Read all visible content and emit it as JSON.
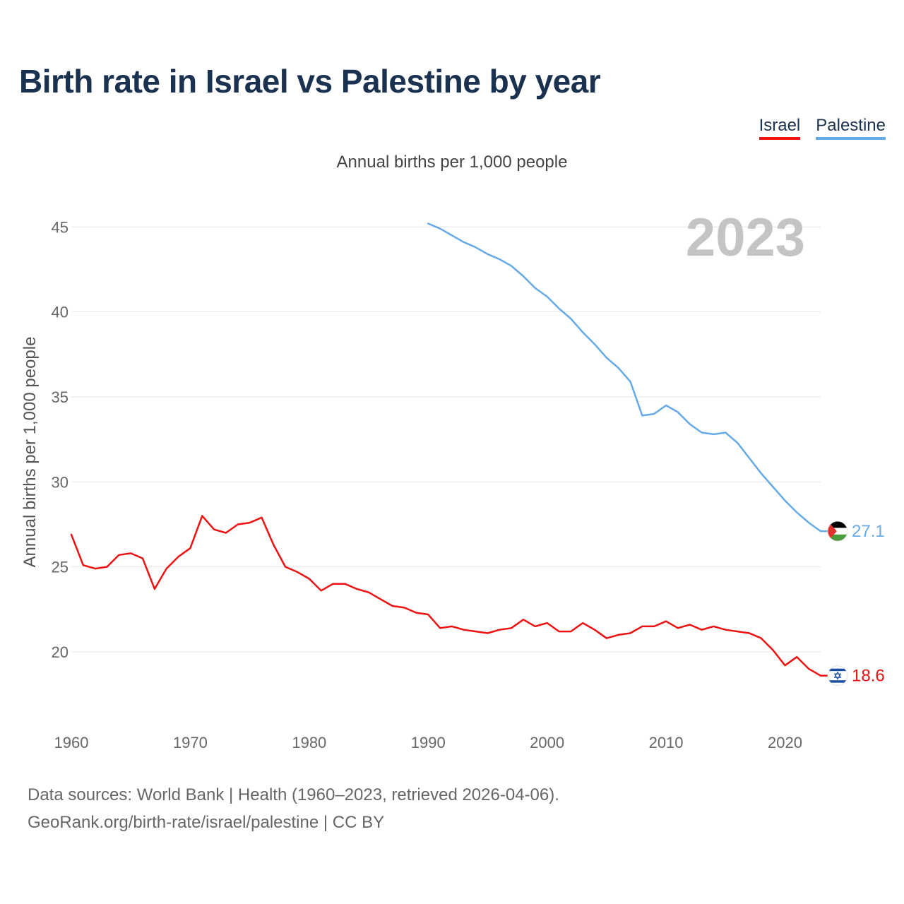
{
  "title": "Birth rate in Israel vs Palestine by year",
  "legend": {
    "israel": "Israel",
    "palestine": "Palestine"
  },
  "subtitle": "Annual births per 1,000 people",
  "footer": {
    "line1": "Data sources: World Bank | Health (1960–2023, retrieved 2026-04-06).",
    "line2": "GeoRank.org/birth-rate/israel/palestine | CC BY"
  },
  "colors": {
    "israel": "#ee1111",
    "palestine": "#65a9e6",
    "grid": "#e6e6e6"
  },
  "chart_data": {
    "type": "line",
    "title": "Birth rate in Israel vs Palestine by year",
    "ylabel": "Annual births per 1,000 people",
    "xlabel": "",
    "current_year_label": "2023",
    "xlim": [
      1960,
      2023
    ],
    "ylim": [
      16.8,
      46.3
    ],
    "x_ticks": [
      1960,
      1970,
      1980,
      1990,
      2000,
      2010,
      2020
    ],
    "y_ticks": [
      20,
      25,
      30,
      35,
      40,
      45
    ],
    "grid": true,
    "series": [
      {
        "name": "Israel",
        "color": "#ee1111",
        "end_label": "18.6",
        "flag_icon": "israel-flag-icon",
        "x": [
          1960,
          1961,
          1962,
          1963,
          1964,
          1965,
          1966,
          1967,
          1968,
          1969,
          1970,
          1971,
          1972,
          1973,
          1974,
          1975,
          1976,
          1977,
          1978,
          1979,
          1980,
          1981,
          1982,
          1983,
          1984,
          1985,
          1986,
          1987,
          1988,
          1989,
          1990,
          1991,
          1992,
          1993,
          1994,
          1995,
          1996,
          1997,
          1998,
          1999,
          2000,
          2001,
          2002,
          2003,
          2004,
          2005,
          2006,
          2007,
          2008,
          2009,
          2010,
          2011,
          2012,
          2013,
          2014,
          2015,
          2016,
          2017,
          2018,
          2019,
          2020,
          2021,
          2022,
          2023
        ],
        "values": [
          26.9,
          25.1,
          24.9,
          25.0,
          25.7,
          25.8,
          25.5,
          23.7,
          24.9,
          25.6,
          26.1,
          28.0,
          27.2,
          27.0,
          27.5,
          27.6,
          27.9,
          26.3,
          25.0,
          24.7,
          24.3,
          23.6,
          24.0,
          24.0,
          23.7,
          23.5,
          23.1,
          22.7,
          22.6,
          22.3,
          22.2,
          21.4,
          21.5,
          21.3,
          21.2,
          21.1,
          21.3,
          21.4,
          21.9,
          21.5,
          21.7,
          21.2,
          21.2,
          21.7,
          21.3,
          20.8,
          21.0,
          21.1,
          21.5,
          21.5,
          21.8,
          21.4,
          21.6,
          21.3,
          21.5,
          21.3,
          21.2,
          21.1,
          20.8,
          20.1,
          19.2,
          19.7,
          19.0,
          18.6
        ]
      },
      {
        "name": "Palestine",
        "color": "#65a9e6",
        "end_label": "27.1",
        "flag_icon": "palestine-flag-icon",
        "x": [
          1990,
          1991,
          1992,
          1993,
          1994,
          1995,
          1996,
          1997,
          1998,
          1999,
          2000,
          2001,
          2002,
          2003,
          2004,
          2005,
          2006,
          2007,
          2008,
          2009,
          2010,
          2011,
          2012,
          2013,
          2014,
          2015,
          2016,
          2017,
          2018,
          2019,
          2020,
          2021,
          2022,
          2023
        ],
        "values": [
          45.2,
          44.9,
          44.5,
          44.1,
          43.8,
          43.4,
          43.1,
          42.7,
          42.1,
          41.4,
          40.9,
          40.2,
          39.6,
          38.8,
          38.1,
          37.3,
          36.7,
          35.9,
          33.9,
          34.0,
          34.5,
          34.1,
          33.4,
          32.9,
          32.8,
          32.9,
          32.3,
          31.4,
          30.5,
          29.7,
          28.9,
          28.2,
          27.6,
          27.1
        ]
      }
    ]
  }
}
